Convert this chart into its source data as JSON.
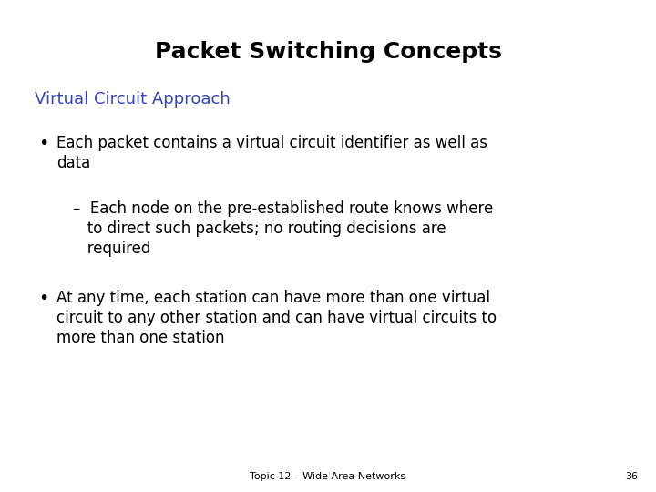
{
  "title": "Packet Switching Concepts",
  "subtitle": "Virtual Circuit Approach",
  "subtitle_color": "#3344BB",
  "bullet1_line1": "Each packet contains a virtual circuit identifier as well as",
  "bullet1_line2": "data",
  "sub_bullet_line1": "–  Each node on the pre-established route knows where",
  "sub_bullet_line2": "   to direct such packets; no routing decisions are",
  "sub_bullet_line3": "   required",
  "bullet2_line1": "At any time, each station can have more than one virtual",
  "bullet2_line2": "circuit to any other station and can have virtual circuits to",
  "bullet2_line3": "more than one station",
  "footer": "Topic 12 – Wide Area Networks",
  "page_num": "36",
  "bg_color": "#FFFFFF",
  "text_color": "#000000",
  "title_fontsize": 18,
  "subtitle_fontsize": 13,
  "body_fontsize": 12,
  "footer_fontsize": 8
}
